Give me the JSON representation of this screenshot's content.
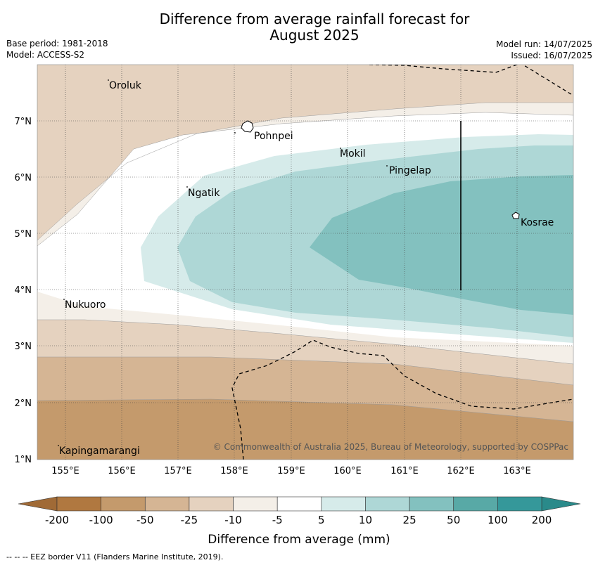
{
  "title_line1": "Difference from average rainfall forecast for",
  "title_line2": "August 2025",
  "base_period": "Base period: 1981-2018",
  "model": "Model: ACCESS-S2",
  "model_run": "Model run: 14/07/2025",
  "issued": "Issued: 16/07/2025",
  "x_ticks": [
    "155°E",
    "156°E",
    "157°E",
    "158°E",
    "159°E",
    "160°E",
    "161°E",
    "162°E",
    "163°E"
  ],
  "y_ticks": [
    "7°N",
    "6°N",
    "5°N",
    "4°N",
    "3°N",
    "2°N",
    "1°N"
  ],
  "places": [
    "Oroluk",
    "Pohnpei",
    "Mokil",
    "Pingelap",
    "Ngatik",
    "Kosrae",
    "Nukuoro",
    "Kapingamarangi"
  ],
  "copyright": "© Commonwealth of Australia 2025, Bureau of Meteorology, supported by COSPPac",
  "colorbar": {
    "ticks": [
      "-200",
      "-100",
      "-50",
      "-25",
      "-10",
      "-5",
      "5",
      "10",
      "25",
      "50",
      "100",
      "200"
    ],
    "colors": [
      "#b07840",
      "#c49a6c",
      "#d5b594",
      "#e5d2bf",
      "#f4efe8",
      "#ffffff",
      "#d6ebea",
      "#aed7d6",
      "#83c1bf",
      "#58a9a6",
      "#35989a"
    ],
    "label": "Difference from average (mm)"
  },
  "footer": "--  --  -- EEZ border V11 (Flanders Marine Institute, 2019)."
}
